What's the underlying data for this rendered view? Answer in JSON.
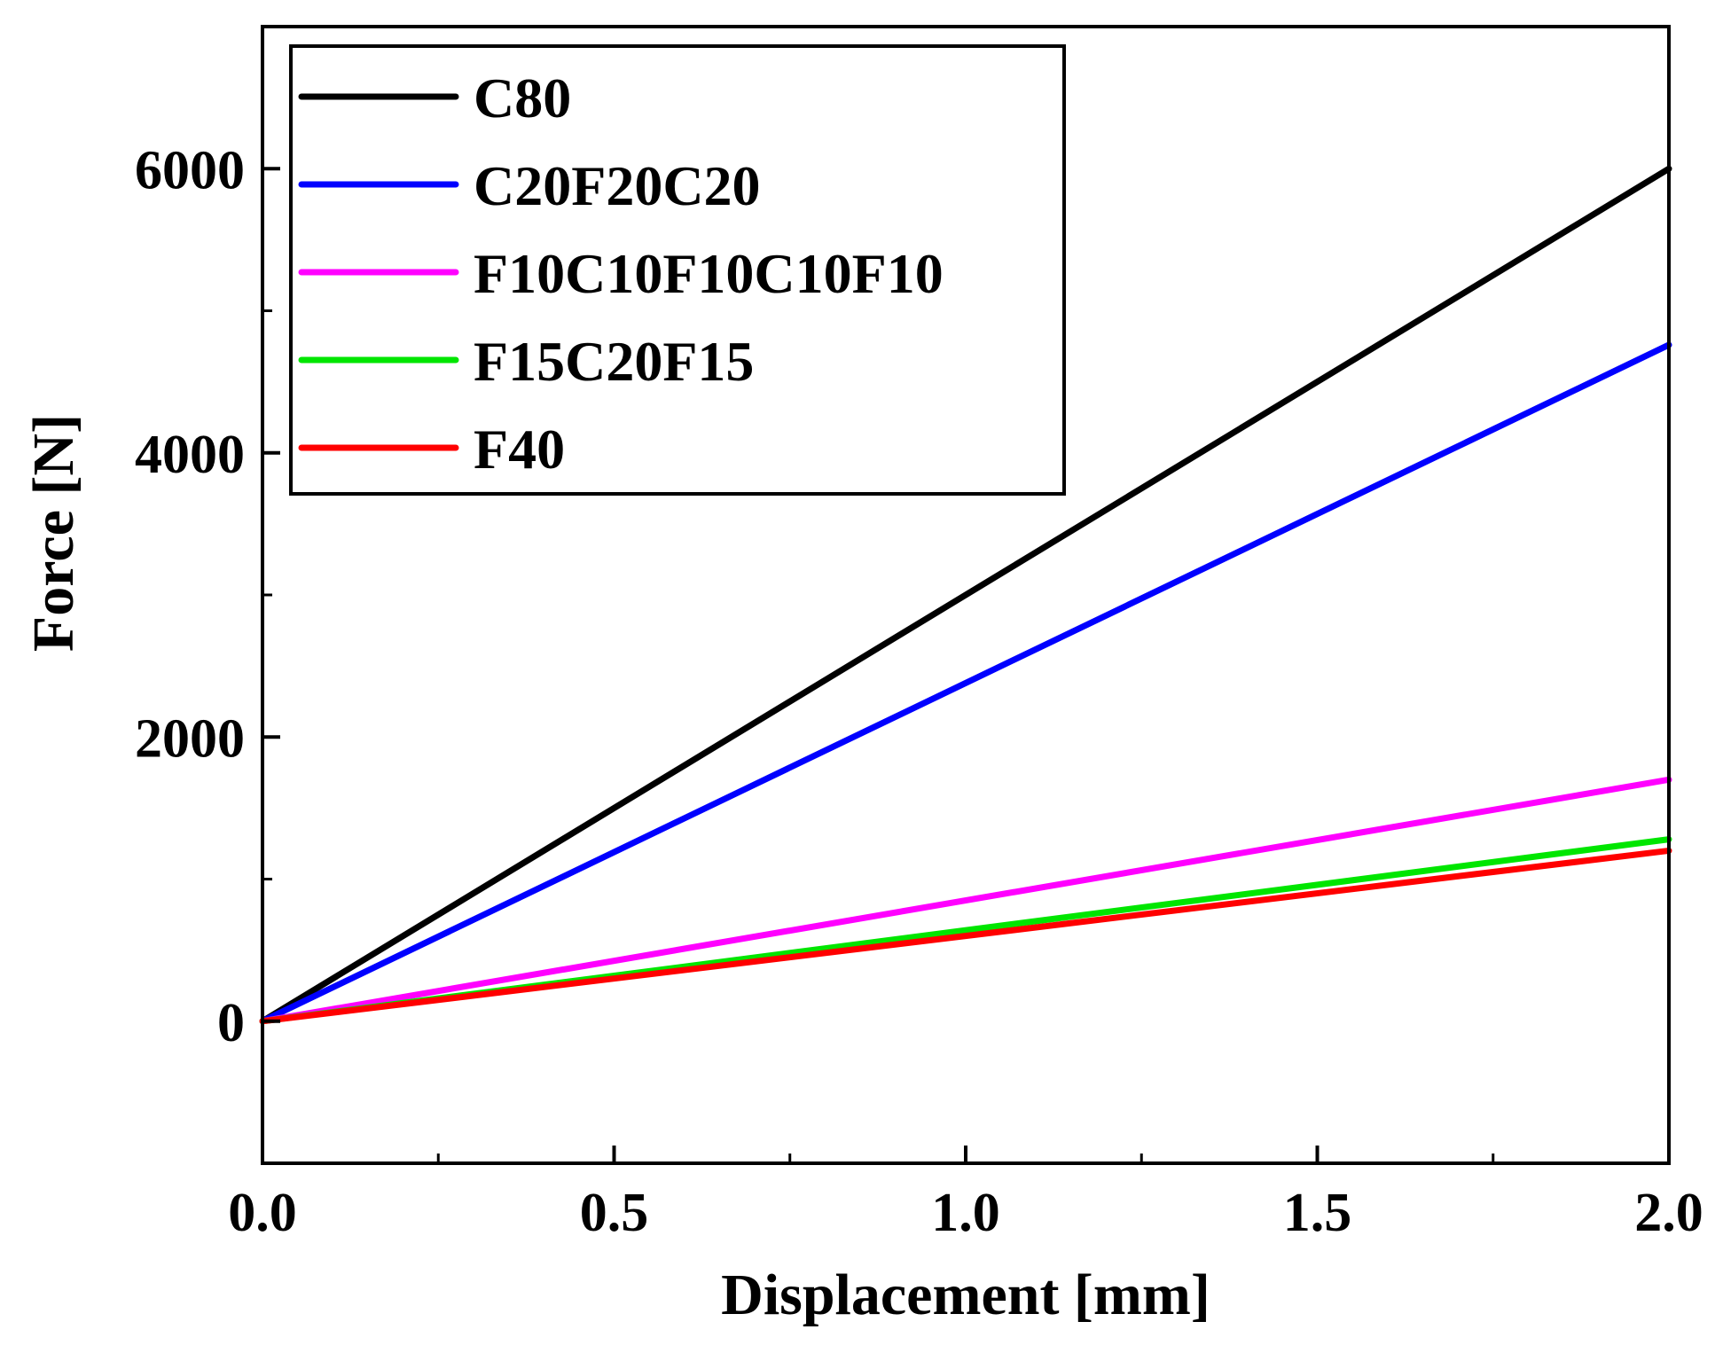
{
  "chart_data": {
    "type": "line",
    "title": "",
    "xlabel": "Displacement [mm]",
    "ylabel": "Force [N]",
    "xlim": [
      0,
      2.0
    ],
    "ylim": [
      -1000,
      7000
    ],
    "x_ticks_major": [
      "0.0",
      "0.5",
      "1.0",
      "1.5",
      "2.0"
    ],
    "x_tick_values": [
      0,
      0.5,
      1.0,
      1.5,
      2.0
    ],
    "x_ticks_minor": [
      0.25,
      0.75,
      1.25,
      1.75
    ],
    "y_ticks_major": [
      "0",
      "2000",
      "4000",
      "6000"
    ],
    "y_tick_values": [
      0,
      2000,
      4000,
      6000
    ],
    "y_ticks_minor": [
      1000,
      3000,
      5000
    ],
    "grid": false,
    "legend_position": "top-left",
    "series": [
      {
        "name": "C80",
        "color": "#000000",
        "x": [
          0,
          2.0
        ],
        "y": [
          0,
          6000
        ]
      },
      {
        "name": "C20F20C20",
        "color": "#0000ff",
        "x": [
          0,
          2.0
        ],
        "y": [
          0,
          4760
        ]
      },
      {
        "name": "F10C10F10C10F10",
        "color": "#ff00ff",
        "x": [
          0,
          2.0
        ],
        "y": [
          0,
          1700
        ]
      },
      {
        "name": "F15C20F15",
        "color": "#00e600",
        "x": [
          0,
          2.0
        ],
        "y": [
          0,
          1280
        ]
      },
      {
        "name": "F40",
        "color": "#ff0000",
        "x": [
          0,
          2.0
        ],
        "y": [
          0,
          1200
        ]
      }
    ]
  }
}
